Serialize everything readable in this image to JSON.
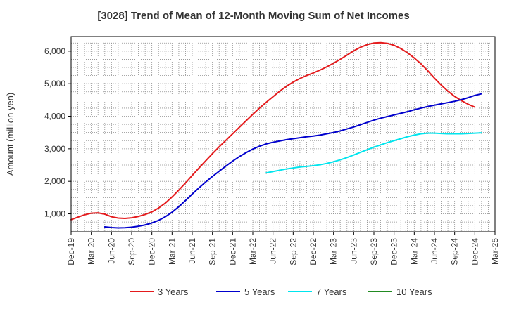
{
  "chart_data": {
    "type": "line",
    "title": "[3028]  Trend of Mean of 12-Month Moving Sum of Net Incomes",
    "xlabel": "",
    "ylabel": "Amount (million yen)",
    "ylim": [
      450,
      6450
    ],
    "yticks": [
      1000,
      2000,
      3000,
      4000,
      5000,
      6000
    ],
    "ytick_labels": [
      "1,000",
      "2,000",
      "3,000",
      "4,000",
      "5,000",
      "6,000"
    ],
    "xlim": [
      "2019-12",
      "2025-03"
    ],
    "xtick_labels": [
      "Dec-19",
      "Mar-20",
      "Jun-20",
      "Sep-20",
      "Dec-20",
      "Mar-21",
      "Jun-21",
      "Sep-21",
      "Dec-21",
      "Mar-22",
      "Jun-22",
      "Sep-22",
      "Dec-22",
      "Mar-23",
      "Jun-23",
      "Sep-23",
      "Dec-23",
      "Mar-24",
      "Jun-24",
      "Sep-24",
      "Dec-24",
      "Mar-25"
    ],
    "grid": true,
    "legend_position": "bottom",
    "series": [
      {
        "name": "3 Years",
        "color": "#e41a1c",
        "points": [
          [
            "2019-12",
            820
          ],
          [
            "2020-01",
            900
          ],
          [
            "2020-02",
            970
          ],
          [
            "2020-03",
            1020
          ],
          [
            "2020-04",
            1030
          ],
          [
            "2020-05",
            990
          ],
          [
            "2020-06",
            910
          ],
          [
            "2020-07",
            870
          ],
          [
            "2020-08",
            860
          ],
          [
            "2020-09",
            880
          ],
          [
            "2020-10",
            920
          ],
          [
            "2020-11",
            980
          ],
          [
            "2020-12",
            1060
          ],
          [
            "2021-01",
            1180
          ],
          [
            "2021-02",
            1330
          ],
          [
            "2021-03",
            1520
          ],
          [
            "2021-04",
            1730
          ],
          [
            "2021-05",
            1950
          ],
          [
            "2021-06",
            2180
          ],
          [
            "2021-07",
            2410
          ],
          [
            "2021-08",
            2630
          ],
          [
            "2021-09",
            2850
          ],
          [
            "2021-10",
            3060
          ],
          [
            "2021-11",
            3260
          ],
          [
            "2021-12",
            3460
          ],
          [
            "2022-01",
            3660
          ],
          [
            "2022-02",
            3860
          ],
          [
            "2022-03",
            4060
          ],
          [
            "2022-04",
            4250
          ],
          [
            "2022-05",
            4430
          ],
          [
            "2022-06",
            4600
          ],
          [
            "2022-07",
            4770
          ],
          [
            "2022-08",
            4920
          ],
          [
            "2022-09",
            5050
          ],
          [
            "2022-10",
            5160
          ],
          [
            "2022-11",
            5250
          ],
          [
            "2022-12",
            5330
          ],
          [
            "2023-01",
            5420
          ],
          [
            "2023-02",
            5520
          ],
          [
            "2023-03",
            5630
          ],
          [
            "2023-04",
            5750
          ],
          [
            "2023-05",
            5880
          ],
          [
            "2023-06",
            6010
          ],
          [
            "2023-07",
            6120
          ],
          [
            "2023-08",
            6200
          ],
          [
            "2023-09",
            6250
          ],
          [
            "2023-10",
            6260
          ],
          [
            "2023-11",
            6240
          ],
          [
            "2023-12",
            6180
          ],
          [
            "2024-01",
            6080
          ],
          [
            "2024-02",
            5950
          ],
          [
            "2024-03",
            5790
          ],
          [
            "2024-04",
            5610
          ],
          [
            "2024-05",
            5400
          ],
          [
            "2024-06",
            5170
          ],
          [
            "2024-07",
            4960
          ],
          [
            "2024-08",
            4770
          ],
          [
            "2024-09",
            4610
          ],
          [
            "2024-10",
            4480
          ],
          [
            "2024-11",
            4370
          ],
          [
            "2024-12",
            4280
          ]
        ]
      },
      {
        "name": "5 Years",
        "color": "#0000cd",
        "points": [
          [
            "2020-05",
            600
          ],
          [
            "2020-06",
            580
          ],
          [
            "2020-07",
            570
          ],
          [
            "2020-08",
            575
          ],
          [
            "2020-09",
            590
          ],
          [
            "2020-10",
            620
          ],
          [
            "2020-11",
            660
          ],
          [
            "2020-12",
            720
          ],
          [
            "2021-01",
            800
          ],
          [
            "2021-02",
            910
          ],
          [
            "2021-03",
            1050
          ],
          [
            "2021-04",
            1220
          ],
          [
            "2021-05",
            1410
          ],
          [
            "2021-06",
            1610
          ],
          [
            "2021-07",
            1800
          ],
          [
            "2021-08",
            1980
          ],
          [
            "2021-09",
            2150
          ],
          [
            "2021-10",
            2310
          ],
          [
            "2021-11",
            2470
          ],
          [
            "2021-12",
            2620
          ],
          [
            "2022-01",
            2760
          ],
          [
            "2022-02",
            2880
          ],
          [
            "2022-03",
            2990
          ],
          [
            "2022-04",
            3080
          ],
          [
            "2022-05",
            3150
          ],
          [
            "2022-06",
            3200
          ],
          [
            "2022-07",
            3240
          ],
          [
            "2022-08",
            3280
          ],
          [
            "2022-09",
            3310
          ],
          [
            "2022-10",
            3340
          ],
          [
            "2022-11",
            3370
          ],
          [
            "2022-12",
            3390
          ],
          [
            "2023-01",
            3420
          ],
          [
            "2023-02",
            3460
          ],
          [
            "2023-03",
            3500
          ],
          [
            "2023-04",
            3550
          ],
          [
            "2023-05",
            3610
          ],
          [
            "2023-06",
            3670
          ],
          [
            "2023-07",
            3740
          ],
          [
            "2023-08",
            3810
          ],
          [
            "2023-09",
            3880
          ],
          [
            "2023-10",
            3940
          ],
          [
            "2023-11",
            3990
          ],
          [
            "2023-12",
            4040
          ],
          [
            "2024-01",
            4090
          ],
          [
            "2024-02",
            4140
          ],
          [
            "2024-03",
            4200
          ],
          [
            "2024-04",
            4250
          ],
          [
            "2024-05",
            4300
          ],
          [
            "2024-06",
            4340
          ],
          [
            "2024-07",
            4380
          ],
          [
            "2024-08",
            4420
          ],
          [
            "2024-09",
            4460
          ],
          [
            "2024-10",
            4510
          ],
          [
            "2024-11",
            4570
          ],
          [
            "2024-12",
            4640
          ],
          [
            "2025-01",
            4690
          ]
        ]
      },
      {
        "name": "7 Years",
        "color": "#00e5ee",
        "points": [
          [
            "2022-05",
            2260
          ],
          [
            "2022-06",
            2300
          ],
          [
            "2022-07",
            2340
          ],
          [
            "2022-08",
            2380
          ],
          [
            "2022-09",
            2410
          ],
          [
            "2022-10",
            2440
          ],
          [
            "2022-11",
            2460
          ],
          [
            "2022-12",
            2480
          ],
          [
            "2023-01",
            2510
          ],
          [
            "2023-02",
            2550
          ],
          [
            "2023-03",
            2600
          ],
          [
            "2023-04",
            2660
          ],
          [
            "2023-05",
            2730
          ],
          [
            "2023-06",
            2810
          ],
          [
            "2023-07",
            2890
          ],
          [
            "2023-08",
            2970
          ],
          [
            "2023-09",
            3050
          ],
          [
            "2023-10",
            3120
          ],
          [
            "2023-11",
            3190
          ],
          [
            "2023-12",
            3250
          ],
          [
            "2024-01",
            3310
          ],
          [
            "2024-02",
            3370
          ],
          [
            "2024-03",
            3420
          ],
          [
            "2024-04",
            3460
          ],
          [
            "2024-05",
            3480
          ],
          [
            "2024-06",
            3480
          ],
          [
            "2024-07",
            3470
          ],
          [
            "2024-08",
            3460
          ],
          [
            "2024-09",
            3460
          ],
          [
            "2024-10",
            3460
          ],
          [
            "2024-11",
            3470
          ],
          [
            "2024-12",
            3480
          ],
          [
            "2025-01",
            3490
          ]
        ]
      },
      {
        "name": "10 Years",
        "color": "#228b22",
        "points": []
      }
    ]
  }
}
